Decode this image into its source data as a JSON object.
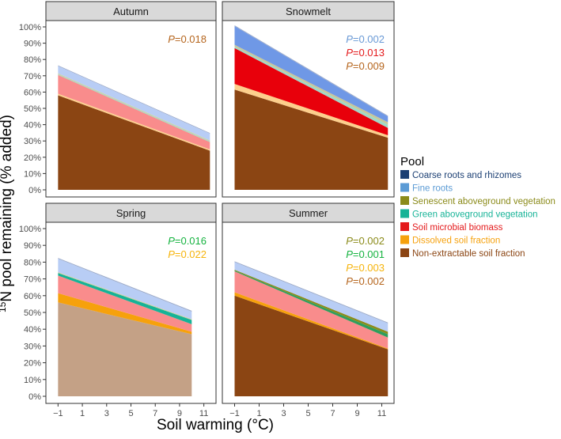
{
  "chart_data": {
    "type": "area",
    "stacked": true,
    "facet_by": "season",
    "xlabel": "Soil warming (°C)",
    "ylabel_super": "15",
    "ylabel_main": "N pool remaining (% added)",
    "x_ticks": [
      -1,
      1,
      3,
      5,
      7,
      9,
      11
    ],
    "x_tick_labels": [
      "−1",
      "1",
      "3",
      "5",
      "7",
      "9",
      "11"
    ],
    "xlim": [
      -2,
      12
    ],
    "ylim": [
      0,
      100
    ],
    "y_ticks": [
      0,
      10,
      20,
      30,
      40,
      50,
      60,
      70,
      80,
      90,
      100
    ],
    "y_tick_labels": [
      "0%",
      "10%",
      "20%",
      "30%",
      "40%",
      "50%",
      "60%",
      "70%",
      "80%",
      "90%",
      "100%"
    ],
    "legend": {
      "title": "Pool",
      "position": "right",
      "entries": [
        {
          "label": "Coarse roots and rhizomes",
          "color": "#1b3f73"
        },
        {
          "label": "Fine roots",
          "color": "#5b9bd5"
        },
        {
          "label": "Senescent aboveground vegetation",
          "color": "#8b8b1a"
        },
        {
          "label": "Green aboveground vegetation",
          "color": "#16b397"
        },
        {
          "label": "Soil microbial biomass",
          "color": "#e41a1c"
        },
        {
          "label": "Dissolved soil fraction",
          "color": "#f6a10c"
        },
        {
          "label": "Non-extractable soil fraction",
          "color": "#8b4513"
        }
      ]
    },
    "panels": [
      {
        "title": "Autumn",
        "x": [
          -1,
          11.5
        ],
        "series": [
          {
            "name": "Non-extractable soil fraction",
            "values": [
              58,
              24
            ],
            "fill": "#8b4513"
          },
          {
            "name": "Dissolved soil fraction",
            "values": [
              1,
              0.8
            ],
            "fill": "#fdcf8c"
          },
          {
            "name": "Soil microbial biomass",
            "values": [
              11.5,
              4.5
            ],
            "fill": "#f98c8c"
          },
          {
            "name": "Green aboveground vegetation",
            "values": [
              0.5,
              0.5
            ],
            "fill": "#9fd9c8"
          },
          {
            "name": "Senescent aboveground vegetation",
            "values": [
              0.5,
              0.5
            ],
            "fill": "#cfcf9a"
          },
          {
            "name": "Fine roots",
            "values": [
              4.5,
              4.2
            ],
            "fill": "#b8cdf5"
          },
          {
            "name": "Coarse roots and rhizomes",
            "values": [
              0.4,
              0.4
            ],
            "fill": "#9aa9c8"
          }
        ],
        "p_values": [
          {
            "prefix": "P",
            "text": "=0.018",
            "color": "#b5651d"
          }
        ]
      },
      {
        "title": "Snowmelt",
        "x": [
          -1,
          11.5
        ],
        "series": [
          {
            "name": "Non-extractable soil fraction",
            "values": [
              61.5,
              32
            ],
            "fill": "#8b4513"
          },
          {
            "name": "Dissolved soil fraction",
            "values": [
              3.5,
              1.5
            ],
            "fill": "#fdcf8c"
          },
          {
            "name": "Soil microbial biomass",
            "values": [
              22,
              4.5
            ],
            "fill": "#e8000b"
          },
          {
            "name": "Green aboveground vegetation",
            "values": [
              1,
              2
            ],
            "fill": "#9fd9c8"
          },
          {
            "name": "Senescent aboveground vegetation",
            "values": [
              1,
              1.5
            ],
            "fill": "#c7c79a"
          },
          {
            "name": "Fine roots",
            "values": [
              11.5,
              3.5
            ],
            "fill": "#6f98e6"
          },
          {
            "name": "Coarse roots and rhizomes",
            "values": [
              0.5,
              0.5
            ],
            "fill": "#9aa9c8"
          }
        ],
        "p_values": [
          {
            "prefix": "P",
            "text": "=0.002",
            "color": "#6a9ad6"
          },
          {
            "prefix": "P",
            "text": "=0.013",
            "color": "#e41a1c"
          },
          {
            "prefix": "P",
            "text": "=0.009",
            "color": "#b5651d"
          }
        ]
      },
      {
        "title": "Spring",
        "x": [
          -1,
          10
        ],
        "series": [
          {
            "name": "Non-extractable soil fraction",
            "values": [
              56,
              37
            ],
            "fill": "#c4a186"
          },
          {
            "name": "Dissolved soil fraction",
            "values": [
              5.5,
              1.5
            ],
            "fill": "#f6a10c"
          },
          {
            "name": "Soil microbial biomass",
            "values": [
              10.5,
              4.5
            ],
            "fill": "#f98c8c"
          },
          {
            "name": "Green aboveground vegetation",
            "values": [
              1.5,
              2.5
            ],
            "fill": "#16b397"
          },
          {
            "name": "Senescent aboveground vegetation",
            "values": [
              0.5,
              0.5
            ],
            "fill": "#cfcf9a"
          },
          {
            "name": "Fine roots",
            "values": [
              8,
              4.5
            ],
            "fill": "#b8cdf5"
          },
          {
            "name": "Coarse roots and rhizomes",
            "values": [
              0.5,
              0.5
            ],
            "fill": "#9aa9c8"
          }
        ],
        "p_values": [
          {
            "prefix": "P",
            "text": "=0.016",
            "color": "#16b340"
          },
          {
            "prefix": "P",
            "text": "=0.022",
            "color": "#f6b40c"
          }
        ]
      },
      {
        "title": "Summer",
        "x": [
          -1,
          11.5
        ],
        "series": [
          {
            "name": "Non-extractable soil fraction",
            "values": [
              60,
              28
            ],
            "fill": "#8b4513"
          },
          {
            "name": "Dissolved soil fraction",
            "values": [
              2,
              0.5
            ],
            "fill": "#f6a10c"
          },
          {
            "name": "Soil microbial biomass",
            "values": [
              12.5,
              6.5
            ],
            "fill": "#f98c8c"
          },
          {
            "name": "Green aboveground vegetation",
            "values": [
              0.5,
              2
            ],
            "fill": "#2f9e5c"
          },
          {
            "name": "Senescent aboveground vegetation",
            "values": [
              0.5,
              1.5
            ],
            "fill": "#8b8b1a"
          },
          {
            "name": "Fine roots",
            "values": [
              4.5,
              5
            ],
            "fill": "#b8cdf5"
          },
          {
            "name": "Coarse roots and rhizomes",
            "values": [
              0.5,
              0.5
            ],
            "fill": "#9aa9c8"
          }
        ],
        "p_values": [
          {
            "prefix": "P",
            "text": "=0.002",
            "color": "#8b8b1a"
          },
          {
            "prefix": "P",
            "text": "=0.001",
            "color": "#16b340"
          },
          {
            "prefix": "P",
            "text": "=0.003",
            "color": "#f6b40c"
          },
          {
            "prefix": "P",
            "text": "=0.002",
            "color": "#b5651d"
          }
        ]
      }
    ]
  }
}
